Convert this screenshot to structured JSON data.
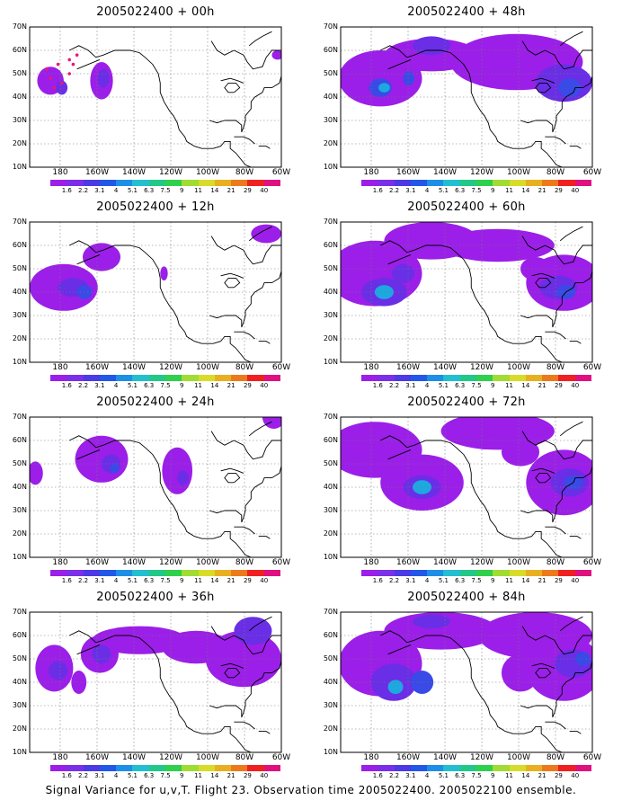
{
  "colorbar": {
    "labels": [
      "1.6",
      "2.2",
      "3.1",
      "4",
      "5.1",
      "6.3",
      "7.5",
      "9",
      "11",
      "14",
      "21",
      "29",
      "40"
    ],
    "colors": [
      "#9b1fe8",
      "#7b2fe8",
      "#4b3ae6",
      "#2257e8",
      "#1d8fe6",
      "#22bfd0",
      "#22c888",
      "#2fd04c",
      "#a0dc32",
      "#d8dc28",
      "#e8b020",
      "#ec7a1c",
      "#f02020",
      "#e01080"
    ]
  },
  "lat_labels": [
    "70N",
    "60N",
    "50N",
    "40N",
    "30N",
    "20N",
    "10N"
  ],
  "lon_labels": [
    "180",
    "160W",
    "140W",
    "120W",
    "100W",
    "80W",
    "60W"
  ],
  "panels": [
    {
      "title": "2005022400 + 00h",
      "lead": "00h"
    },
    {
      "title": "2005022400 + 48h",
      "lead": "48h"
    },
    {
      "title": "2005022400 + 12h",
      "lead": "12h"
    },
    {
      "title": "2005022400 + 60h",
      "lead": "60h"
    },
    {
      "title": "2005022400 + 24h",
      "lead": "24h"
    },
    {
      "title": "2005022400 + 72h",
      "lead": "72h"
    },
    {
      "title": "2005022400 + 36h",
      "lead": "36h"
    },
    {
      "title": "2005022400 + 84h",
      "lead": "84h"
    }
  ],
  "caption": "Signal Variance for u,v,T. Flight 23. Observation time 2005022400. 2005022100 ensemble.",
  "blob_colors": {
    "outer": "#9b1fe8",
    "inner": "#6a2ee6",
    "core": "#3a4ae6",
    "peak": "#1ea8e0"
  }
}
